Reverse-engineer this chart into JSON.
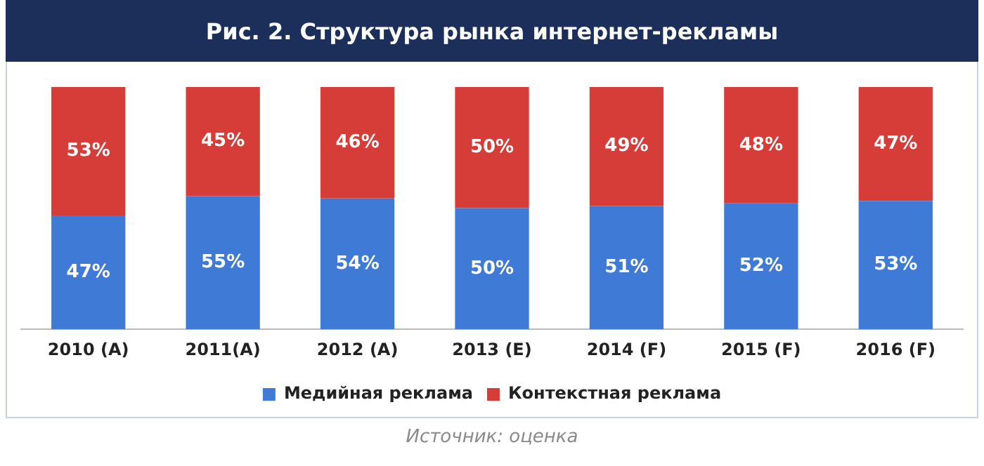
{
  "chart_data": {
    "type": "bar",
    "title": "Рис. 2. Структура рынка интернет-рекламы",
    "categories": [
      "2010 (A)",
      "2011(A)",
      "2012 (A)",
      "2013 (E)",
      "2014 (F)",
      "2015 (F)",
      "2016 (F)"
    ],
    "stacked": true,
    "legend": "bottom",
    "grid": false,
    "tick_labels": "x",
    "series": [
      {
        "name": "Медийная реклама",
        "color": "#3f7bd6",
        "values": [
          47,
          55,
          54,
          50,
          51,
          52,
          53
        ],
        "value_labels": [
          "47%",
          "55%",
          "54%",
          "50%",
          "51%",
          "52%",
          "53%"
        ]
      },
      {
        "name": "Контекстная реклама",
        "color": "#d63c38",
        "values": [
          53,
          45,
          46,
          50,
          49,
          48,
          47
        ],
        "value_labels": [
          "53%",
          "45%",
          "46%",
          "50%",
          "49%",
          "48%",
          "47%"
        ]
      }
    ],
    "annotations": [
      "Источник: оценка"
    ]
  }
}
